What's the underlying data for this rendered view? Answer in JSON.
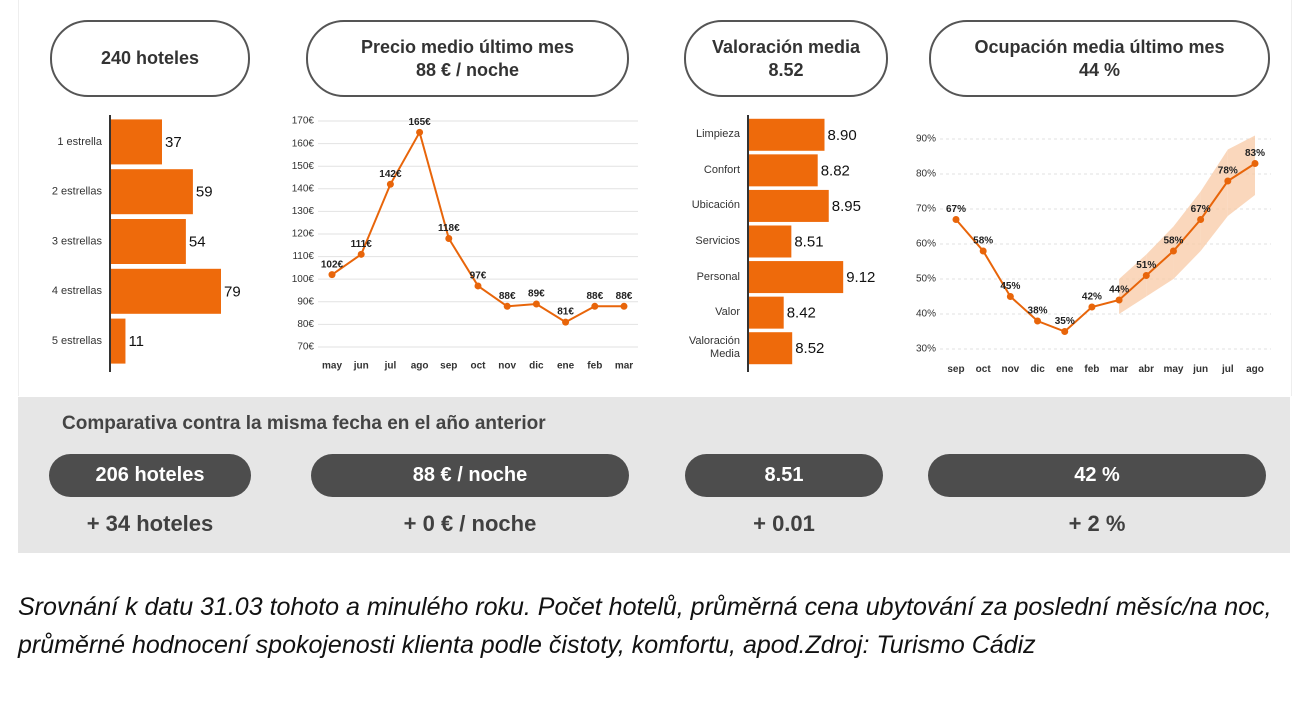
{
  "cards": [
    {
      "title": "240 hoteles"
    },
    {
      "title": "Precio medio último mes",
      "value": "88 € / noche"
    },
    {
      "title": "Valoración media",
      "value": "8.52"
    },
    {
      "title": "Ocupación media último mes",
      "value": "44 %"
    }
  ],
  "chart_data": [
    {
      "type": "hbar",
      "categories": [
        "1 estrella",
        "2 estrellas",
        "3 estrellas",
        "4 estrellas",
        "5 estrellas"
      ],
      "values": [
        37,
        59,
        54,
        79,
        11
      ],
      "color": "#ee6a0b"
    },
    {
      "type": "line",
      "categories": [
        "may",
        "jun",
        "jul",
        "ago",
        "sep",
        "oct",
        "nov",
        "dic",
        "ene",
        "feb",
        "mar"
      ],
      "values": [
        102,
        111,
        142,
        165,
        118,
        97,
        88,
        89,
        81,
        88,
        88
      ],
      "value_labels": [
        "102€",
        "111€",
        "142€",
        "165€",
        "118€",
        "97€",
        "88€",
        "89€",
        "81€",
        "88€",
        "88€"
      ],
      "color": "#e8650a",
      "ylim": [
        66,
        172
      ],
      "yticks": [
        {
          "value": 70,
          "label": "70€"
        },
        {
          "value": 80,
          "label": "80€"
        },
        {
          "value": 90,
          "label": "90€"
        },
        {
          "value": 100,
          "label": "100€"
        },
        {
          "value": 110,
          "label": "110€"
        },
        {
          "value": 120,
          "label": "120€"
        },
        {
          "value": 130,
          "label": "130€"
        },
        {
          "value": 140,
          "label": "140€"
        },
        {
          "value": 150,
          "label": "150€"
        },
        {
          "value": 160,
          "label": "160€"
        },
        {
          "value": 170,
          "label": "170€"
        }
      ],
      "grid": true
    },
    {
      "type": "hbar",
      "categories": [
        "Limpieza",
        "Confort",
        "Ubicación",
        "Servicios",
        "Personal",
        "Valor",
        "Valoración Media"
      ],
      "values": [
        8.9,
        8.82,
        8.95,
        8.51,
        9.12,
        8.42,
        8.52
      ],
      "value_labels": [
        "8.90",
        "8.82",
        "8.95",
        "8.51",
        "9.12",
        "8.42",
        "8.52"
      ],
      "color": "#ee6a0b",
      "xlim": [
        8,
        9.2
      ]
    },
    {
      "type": "line",
      "categories": [
        "sep",
        "oct",
        "nov",
        "dic",
        "ene",
        "feb",
        "mar",
        "abr",
        "may",
        "jun",
        "jul",
        "ago"
      ],
      "values": [
        67,
        58,
        45,
        38,
        35,
        42,
        44,
        51,
        58,
        67,
        78,
        83
      ],
      "value_labels": [
        "67%",
        "58%",
        "45%",
        "38%",
        "35%",
        "42%",
        "44%",
        "51%",
        "58%",
        "67%",
        "78%",
        "83%"
      ],
      "band_upper": [
        null,
        null,
        null,
        null,
        null,
        null,
        50,
        57,
        65,
        75,
        87,
        91
      ],
      "band_lower": [
        null,
        null,
        null,
        null,
        null,
        null,
        40,
        45,
        50,
        58,
        68,
        74
      ],
      "band_color": "#f8c9a6",
      "color": "#e8650a",
      "ylim": [
        27,
        92
      ],
      "yticks": [
        {
          "value": 30,
          "label": "30%"
        },
        {
          "value": 40,
          "label": "40%"
        },
        {
          "value": 50,
          "label": "50%"
        },
        {
          "value": 60,
          "label": "60%"
        },
        {
          "value": 70,
          "label": "70%"
        },
        {
          "value": 80,
          "label": "80%"
        },
        {
          "value": 90,
          "label": "90%"
        }
      ],
      "grid": true,
      "grid_dashed": true
    }
  ],
  "comparison": {
    "title": "Comparativa contra la misma fecha en el año anterior",
    "items": [
      {
        "value": "206 hoteles",
        "change": "+ 34 hoteles"
      },
      {
        "value": "88 € / noche",
        "change": "+ 0 € / noche"
      },
      {
        "value": "8.51",
        "change": "+ 0.01"
      },
      {
        "value": "42 %",
        "change": "+ 2 %"
      }
    ]
  },
  "caption": "Srovnání k datu 31.03 tohoto a minulého roku. Počet hotelů, průměrná cena ubytování za poslední měsíc/na noc, průměrné hodnocení spokojenosti klienta podle čistoty, komfortu, apod.Zdroj: Turismo Cádiz"
}
